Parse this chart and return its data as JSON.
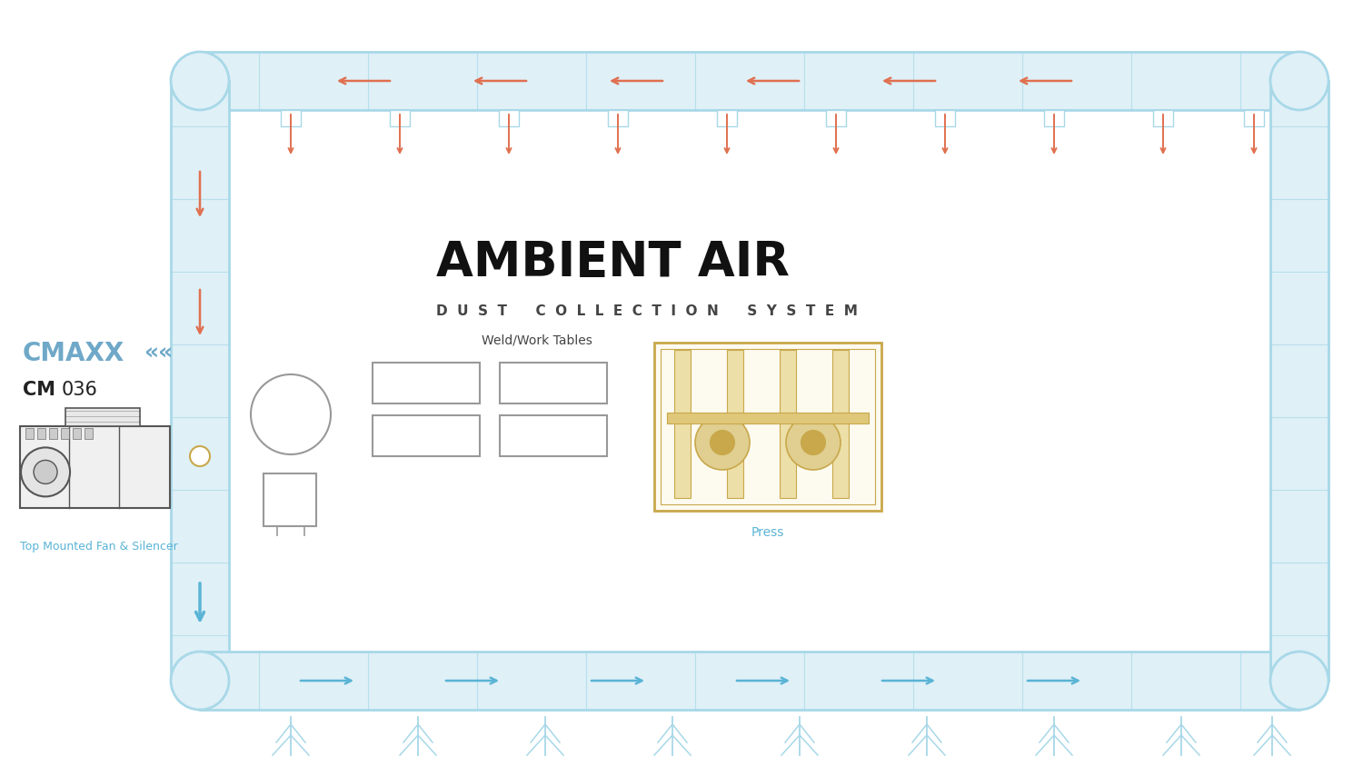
{
  "title_main": "AMBIENT AIR",
  "title_sub": "DUST COLLECTION SYSTEM",
  "brand_name": "CMAXX",
  "model_name": "CM036",
  "label_fan": "Top Mounted Fan & Silencer",
  "label_tables": "Weld/Work Tables",
  "label_press": "Press",
  "bg_color": "#ffffff",
  "duct_color": "#a8d8e8",
  "duct_fill": "#dff0f7",
  "arrow_in_color": "#e07050",
  "arrow_out_color": "#5ab4d6",
  "press_color": "#c8a84b",
  "equip_color": "#555555",
  "brand_color": "#6fa8c8",
  "label_color": "#5ab4d6",
  "title_color": "#111111",
  "sub_color": "#444444"
}
